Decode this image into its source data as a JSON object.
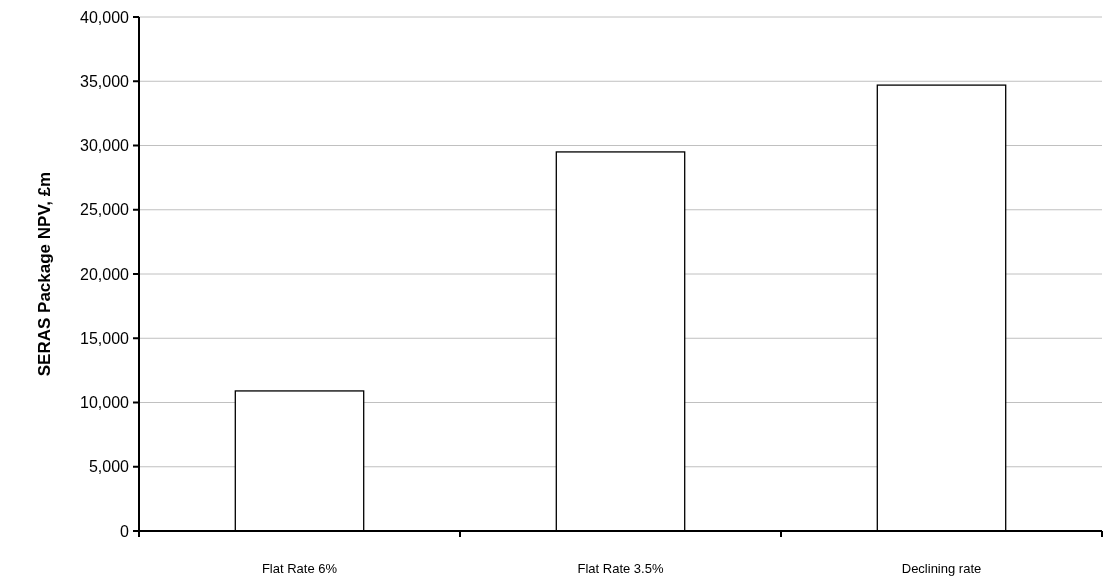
{
  "chart_data": {
    "type": "bar",
    "ylabel": "SERAS Package NPV, £m",
    "categories": [
      "Flat Rate 6%",
      "Flat Rate 3.5%",
      "Declining rate"
    ],
    "values": [
      10900,
      29500,
      34700
    ],
    "color": "#ffffff",
    "ylim": [
      0,
      40000
    ],
    "yticks": [
      0,
      {
        "value": 5000,
        "label": "5,000"
      },
      {
        "value": 10000,
        "label": "10,000"
      },
      {
        "value": 15000,
        "label": "15,000"
      },
      {
        "value": 20000,
        "label": "20,000"
      },
      {
        "value": 25000,
        "label": "25,000"
      },
      {
        "value": 30000,
        "label": "30,000"
      },
      {
        "value": 35000,
        "label": "35,000"
      },
      {
        "value": 40000,
        "label": "40,000"
      }
    ],
    "grid": "y"
  }
}
